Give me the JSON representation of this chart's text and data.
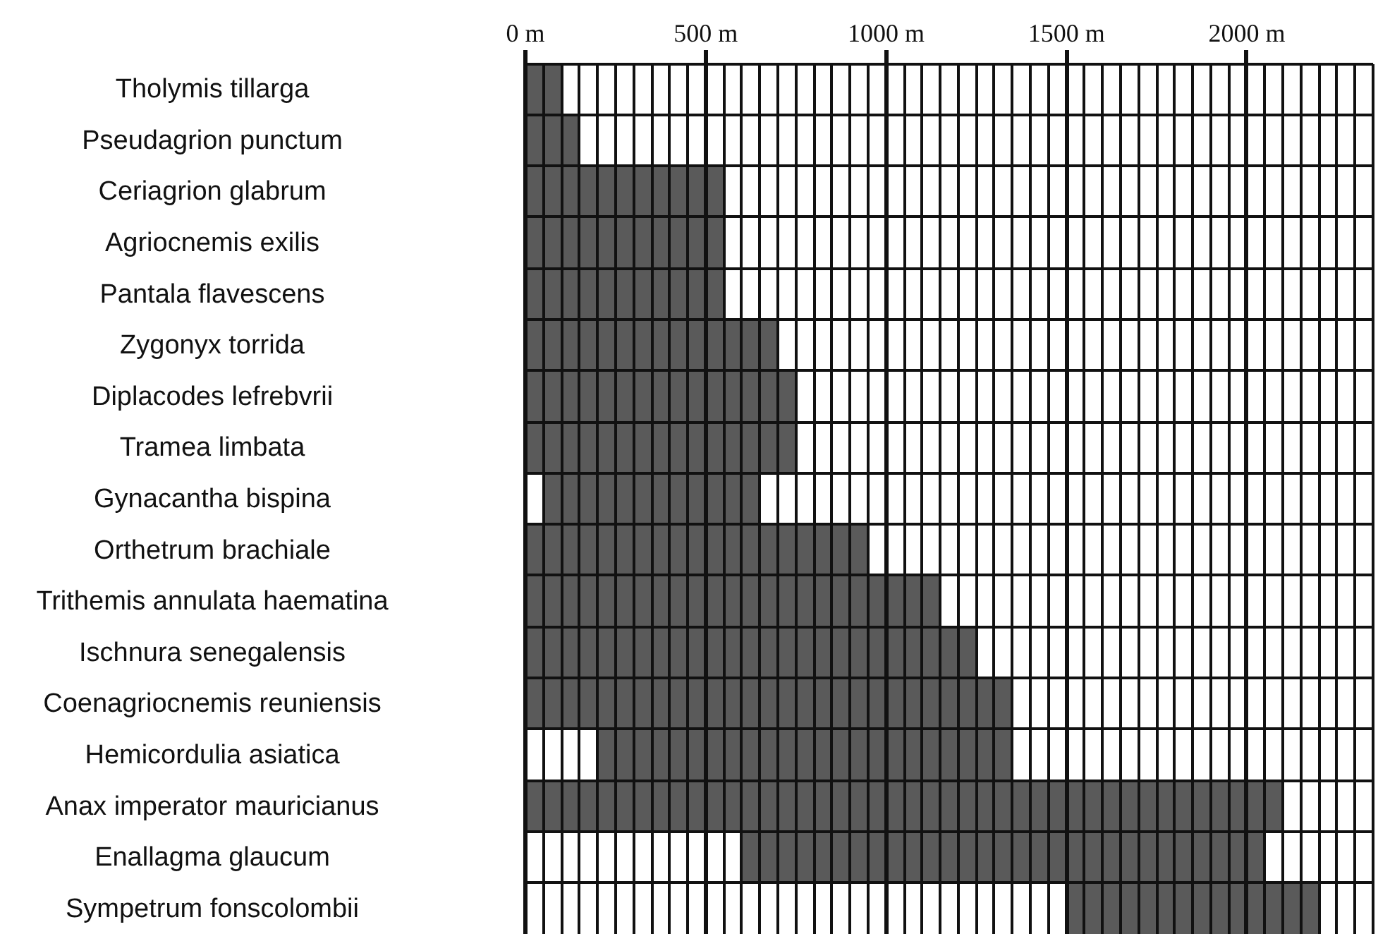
{
  "chart_data": {
    "type": "bar",
    "orientation": "horizontal",
    "categories": [
      "Tholymis tillarga",
      "Pseudagrion punctum",
      "Ceriagrion glabrum",
      "Agriocnemis exilis",
      "Pantala flavescens",
      "Zygonyx torrida",
      "Diplacodes lefrebvrii",
      "Tramea limbata",
      "Gynacantha bispina",
      "Orthetrum brachiale",
      "Trithemis annulata haematina",
      "Ischnura senegalensis",
      "Coenagriocnemis reuniensis",
      "Hemicordulia asiatica",
      "Anax imperator mauricianus",
      "Enallagma glaucum",
      "Sympetrum fonscolombii"
    ],
    "base": [
      0,
      0,
      0,
      0,
      0,
      0,
      0,
      0,
      50,
      0,
      0,
      0,
      0,
      200,
      0,
      600,
      1500
    ],
    "values": [
      100,
      150,
      550,
      550,
      550,
      700,
      750,
      750,
      600,
      950,
      1150,
      1250,
      1350,
      1150,
      2100,
      1450,
      700
    ],
    "color": "#5a5a5a",
    "xlim": [
      0,
      2350
    ],
    "xticks": [
      {
        "value": 0,
        "label": "0 m"
      },
      {
        "value": 50,
        "label": null
      },
      {
        "value": 100,
        "label": null
      },
      {
        "value": 150,
        "label": null
      },
      {
        "value": 200,
        "label": null
      },
      {
        "value": 250,
        "label": null
      },
      {
        "value": 300,
        "label": null
      },
      {
        "value": 350,
        "label": null
      },
      {
        "value": 400,
        "label": null
      },
      {
        "value": 450,
        "label": null
      },
      {
        "value": 500,
        "label": "500 m"
      },
      {
        "value": 550,
        "label": null
      },
      {
        "value": 600,
        "label": null
      },
      {
        "value": 650,
        "label": null
      },
      {
        "value": 700,
        "label": null
      },
      {
        "value": 750,
        "label": null
      },
      {
        "value": 800,
        "label": null
      },
      {
        "value": 850,
        "label": null
      },
      {
        "value": 900,
        "label": null
      },
      {
        "value": 950,
        "label": null
      },
      {
        "value": 1000,
        "label": "1000 m"
      },
      {
        "value": 1050,
        "label": null
      },
      {
        "value": 1100,
        "label": null
      },
      {
        "value": 1150,
        "label": null
      },
      {
        "value": 1200,
        "label": null
      },
      {
        "value": 1250,
        "label": null
      },
      {
        "value": 1300,
        "label": null
      },
      {
        "value": 1350,
        "label": null
      },
      {
        "value": 1400,
        "label": null
      },
      {
        "value": 1450,
        "label": null
      },
      {
        "value": 1500,
        "label": "1500 m"
      },
      {
        "value": 1550,
        "label": null
      },
      {
        "value": 1600,
        "label": null
      },
      {
        "value": 1650,
        "label": null
      },
      {
        "value": 1700,
        "label": null
      },
      {
        "value": 1750,
        "label": null
      },
      {
        "value": 1800,
        "label": null
      },
      {
        "value": 1850,
        "label": null
      },
      {
        "value": 1900,
        "label": null
      },
      {
        "value": 1950,
        "label": null
      },
      {
        "value": 2000,
        "label": "2000 m"
      },
      {
        "value": 2050,
        "label": null
      },
      {
        "value": 2100,
        "label": null
      },
      {
        "value": 2150,
        "label": null
      },
      {
        "value": 2200,
        "label": null
      },
      {
        "value": 2250,
        "label": null
      },
      {
        "value": 2300,
        "label": null
      },
      {
        "value": 2350,
        "label": null
      }
    ],
    "grid": true
  }
}
